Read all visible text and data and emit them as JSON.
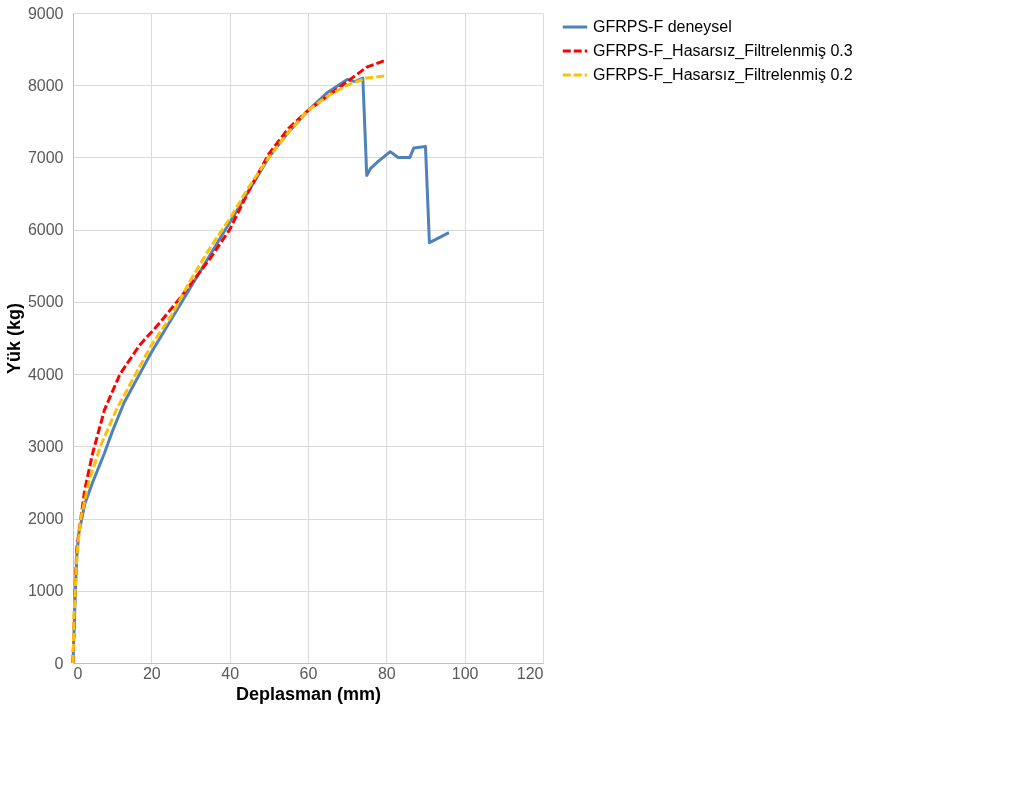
{
  "chart_data": {
    "type": "line",
    "xlabel": "Deplasman (mm)",
    "ylabel": "Yük (kg)",
    "xlim": [
      0,
      120
    ],
    "xticks": [
      0,
      20,
      40,
      60,
      80,
      100,
      120
    ],
    "ylim": [
      0,
      9000
    ],
    "yticks": [
      0,
      1000,
      2000,
      3000,
      4000,
      5000,
      6000,
      7000,
      8000,
      9000
    ],
    "grid": true,
    "legend": "right",
    "marker": "none",
    "series": [
      {
        "name": "GFRPS-F deneysel",
        "color": "#4f81bd",
        "line_style": "solid",
        "x": [
          0,
          0.3,
          0.6,
          1,
          1.5,
          3,
          5,
          8,
          10,
          13,
          17,
          20,
          25,
          30,
          35,
          40,
          45,
          50,
          55,
          60,
          65,
          70,
          72,
          74,
          75,
          76,
          78,
          81,
          83,
          86,
          87,
          90,
          91,
          96
        ],
        "values": [
          0,
          500,
          1000,
          1500,
          1800,
          2200,
          2500,
          2900,
          3200,
          3600,
          4000,
          4300,
          4750,
          5200,
          5650,
          6100,
          6550,
          7000,
          7350,
          7650,
          7900,
          8080,
          8050,
          8100,
          6750,
          6850,
          6950,
          7080,
          7000,
          7000,
          7130,
          7150,
          5820,
          5960
        ]
      },
      {
        "name": "GFRPS-F_Hasarsız_Filtrelenmiş 0.3",
        "color": "#ff0000",
        "line_style": "dashed",
        "x": [
          0,
          0.5,
          1,
          2,
          3,
          5,
          8,
          12,
          17,
          22,
          28,
          35,
          40,
          45,
          50,
          55,
          60,
          65,
          70,
          75,
          80
        ],
        "values": [
          0,
          1000,
          1600,
          2000,
          2400,
          2900,
          3500,
          4000,
          4400,
          4700,
          5100,
          5600,
          6000,
          6550,
          7050,
          7400,
          7650,
          7850,
          8050,
          8250,
          8350
        ]
      },
      {
        "name": "GFRPS-F_Hasarsız_Filtrelenmiş 0.2",
        "color": "#ffc000",
        "line_style": "dashed",
        "x": [
          0,
          0.3,
          1,
          2,
          4,
          7,
          11,
          15,
          20,
          25,
          30,
          35,
          40,
          45,
          50,
          55,
          60,
          65,
          70,
          75,
          80
        ],
        "values": [
          0,
          700,
          1500,
          2000,
          2500,
          3000,
          3500,
          3900,
          4400,
          4800,
          5300,
          5750,
          6150,
          6600,
          7000,
          7350,
          7650,
          7850,
          8000,
          8100,
          8130
        ]
      }
    ]
  }
}
